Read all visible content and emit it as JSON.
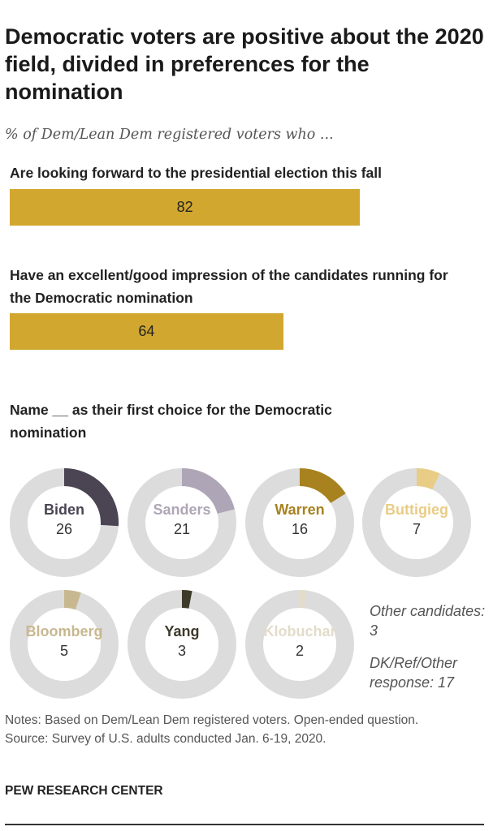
{
  "title": "Democratic voters are positive about the 2020 field, divided in preferences for the nomination",
  "subtitle": "% of Dem/Lean Dem registered voters who ...",
  "chart_data": [
    {
      "type": "bar",
      "categories": [
        "Are looking forward to the presidential election this fall",
        "Have an excellent/good impression of the candidates running for the Democratic nomination"
      ],
      "values": [
        82,
        64
      ],
      "xlim": [
        0,
        100
      ],
      "color": "#d1a72f"
    },
    {
      "type": "pie",
      "title": "Name __ as their first choice for the Democratic nomination",
      "track_color": "#dcdcdc",
      "slices": [
        {
          "label": "Biden",
          "value": 26,
          "color": "#4a4453"
        },
        {
          "label": "Sanders",
          "value": 21,
          "color": "#aea6b6"
        },
        {
          "label": "Warren",
          "value": 16,
          "color": "#a7821f"
        },
        {
          "label": "Buttigieg",
          "value": 7,
          "color": "#e9cd86"
        },
        {
          "label": "Bloomberg",
          "value": 5,
          "color": "#c8b88f"
        },
        {
          "label": "Yang",
          "value": 3,
          "color": "#3e3a2b"
        },
        {
          "label": "Klobuchar",
          "value": 2,
          "color": "#e3dcca"
        }
      ],
      "other_notes": [
        "Other candidates: 3",
        "DK/Ref/Other response: 17"
      ]
    }
  ],
  "notes": "Notes: Based on Dem/Lean Dem registered voters. Open-ended question.",
  "source": "Source: Survey of U.S. adults conducted Jan. 6-19, 2020.",
  "brand": "PEW RESEARCH CENTER"
}
